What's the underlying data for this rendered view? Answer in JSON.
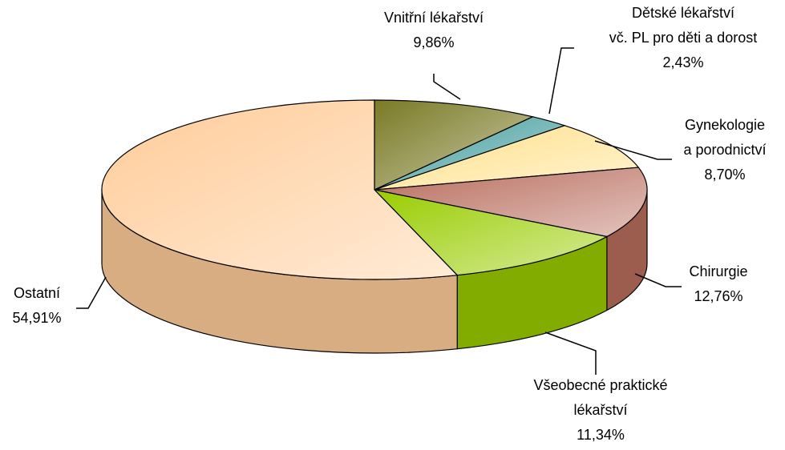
{
  "chart_data": {
    "type": "pie3d",
    "categories": [
      "Vnitřní lékařství",
      "Dětské lékařství\nvč. PL pro děti a dorost",
      "Gynekologie\na porodnictví",
      "Chirurgie",
      "Všeobecné praktické\nlékařství",
      "Ostatní"
    ],
    "values": [
      9.86,
      2.43,
      8.7,
      12.76,
      11.34,
      54.91
    ],
    "value_labels": [
      "9,86%",
      "2,43%",
      "8,70%",
      "12,76%",
      "11,34%",
      "54,91%"
    ],
    "colors": [
      "#7a7a26",
      "#3f9a9a",
      "#ffe089",
      "#b86c5c",
      "#99cc00",
      "#ffcc99"
    ]
  }
}
